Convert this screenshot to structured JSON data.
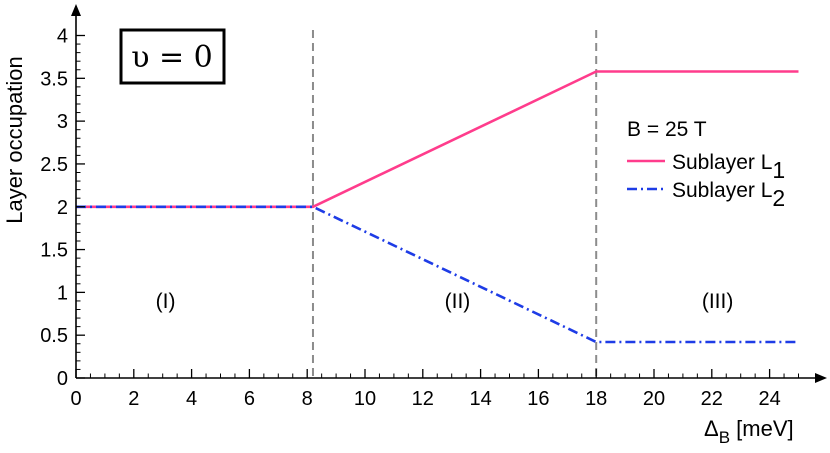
{
  "chart_data": {
    "type": "line",
    "xlabel_main": "Δ",
    "xlabel_sub": "B",
    "xlabel_unit": " [meV]",
    "ylabel": "Layer occupation",
    "xlim": [
      0,
      25
    ],
    "ylim": [
      0,
      4
    ],
    "x_ticks": [
      0,
      2,
      4,
      6,
      8,
      10,
      12,
      14,
      16,
      18,
      20,
      22,
      24
    ],
    "y_ticks": [
      0,
      0.5,
      1,
      1.5,
      2,
      2.5,
      3,
      3.5,
      4
    ],
    "y_tick_labels": [
      "0",
      "0.5",
      "1",
      "1.5",
      "2",
      "2.5",
      "3",
      "3.5",
      "4"
    ],
    "grid": false,
    "legend_title": "B = 25 T",
    "legend_position": "right",
    "boxed_label": "υ = 0",
    "vlines": [
      8.2,
      18
    ],
    "regions": [
      {
        "label": "(I)",
        "x": 3.1,
        "y": 0.82
      },
      {
        "label": "(II)",
        "x": 13.2,
        "y": 0.82
      },
      {
        "label": "(III)",
        "x": 22.2,
        "y": 0.82
      }
    ],
    "series": [
      {
        "name_main": "Sublayer L",
        "name_sub": "1",
        "color": "#ff3c8c",
        "style": "solid",
        "x": [
          0,
          8.2,
          18,
          25
        ],
        "y": [
          2,
          2,
          3.58,
          3.58
        ]
      },
      {
        "name_main": "Sublayer L",
        "name_sub": "2",
        "color": "#1e3ce6",
        "style": "dashdot",
        "x": [
          0,
          8.2,
          18,
          25
        ],
        "y": [
          2,
          2,
          0.42,
          0.42
        ]
      }
    ]
  }
}
